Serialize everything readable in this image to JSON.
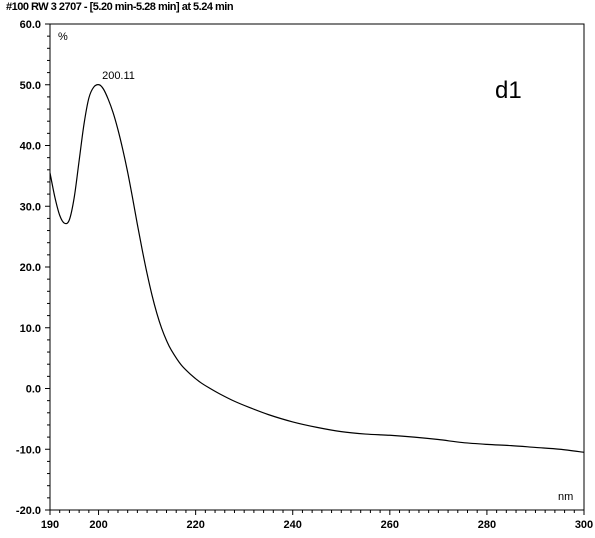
{
  "chart_data": {
    "type": "line",
    "title": "#100 RW 3 2707 - [5.20 min-5.28 min] at 5.24 min",
    "xlabel": "nm",
    "ylabel": "%",
    "xlim": [
      190,
      300
    ],
    "ylim": [
      -20,
      60
    ],
    "xticks": [
      190,
      200,
      220,
      240,
      260,
      280,
      300
    ],
    "xtick_labels": [
      "190",
      "200",
      "220",
      "240",
      "260",
      "280",
      "300"
    ],
    "yticks": [
      60,
      50,
      40,
      30,
      20,
      10,
      0,
      -10,
      -20
    ],
    "ytick_labels": [
      "60.0",
      "50.0",
      "40.0",
      "30.0",
      "20.0",
      "10.0",
      "0.0",
      "-10.0",
      "-20.0"
    ],
    "grid": false,
    "series": [
      {
        "color": "#000000",
        "x": [
          190,
          191,
          192,
          193,
          194,
          195,
          196,
          197,
          198,
          199,
          200.11,
          201,
          202,
          203,
          204,
          205,
          206,
          207,
          208,
          209,
          210,
          211,
          212,
          213,
          214,
          215,
          217,
          219,
          221,
          223,
          225,
          228,
          231,
          235,
          240,
          245,
          250,
          255,
          260,
          265,
          270,
          275,
          280,
          285,
          290,
          295,
          300
        ],
        "y": [
          35.5,
          31.5,
          28.5,
          27.2,
          27.8,
          31.5,
          37.5,
          43.5,
          47.8,
          49.6,
          50.0,
          49.3,
          47.6,
          45.4,
          42.6,
          39.3,
          35.6,
          31.4,
          27.0,
          22.8,
          18.9,
          15.4,
          12.4,
          9.9,
          7.9,
          6.3,
          3.9,
          2.3,
          1.0,
          0.0,
          -0.9,
          -2.1,
          -3.1,
          -4.3,
          -5.5,
          -6.4,
          -7.1,
          -7.5,
          -7.7,
          -8.0,
          -8.4,
          -8.9,
          -9.2,
          -9.4,
          -9.7,
          -10.0,
          -10.5
        ]
      }
    ],
    "annotations": [
      {
        "text": "200.11",
        "x": 200.11,
        "y": 50.0
      },
      {
        "text": "d1",
        "position": "top-right"
      }
    ]
  }
}
